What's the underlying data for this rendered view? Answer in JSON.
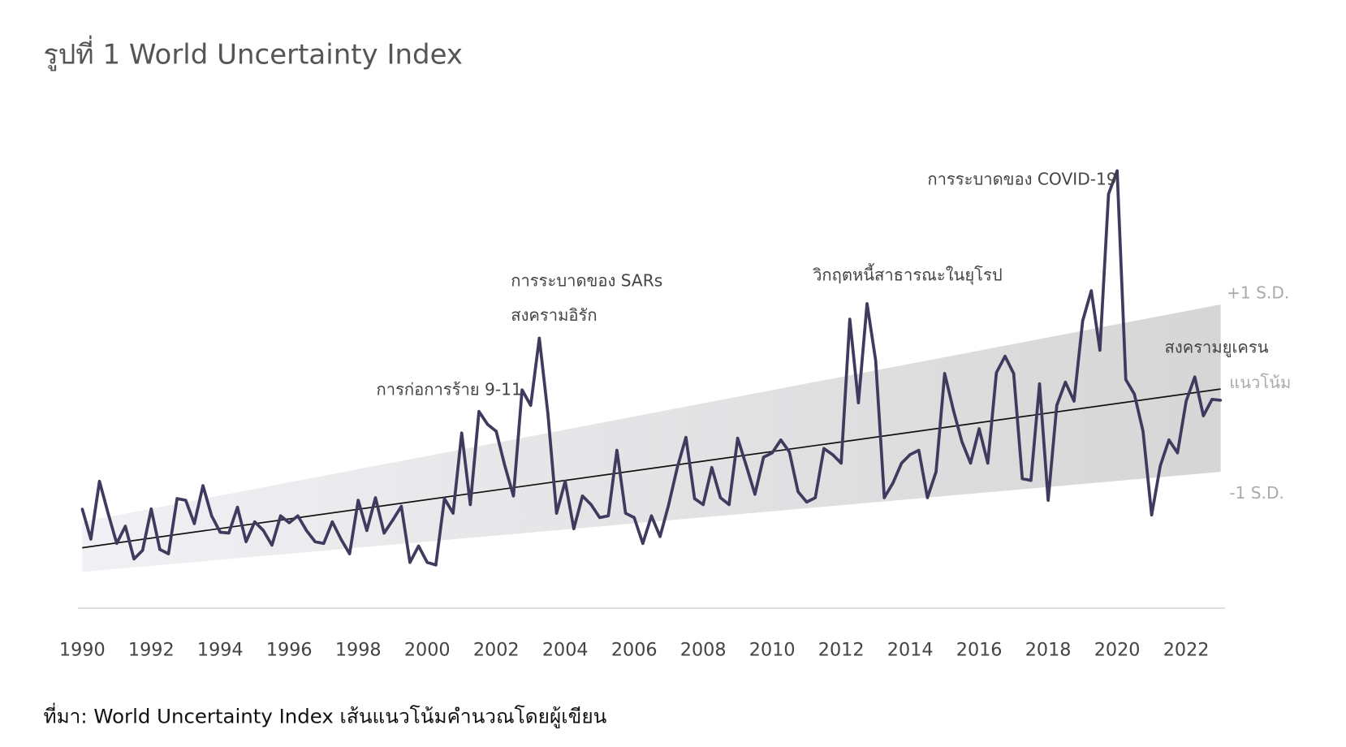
{
  "title": "รูปที่ 1 World Uncertainty Index",
  "source": "ที่มา: World Uncertainty Index เส้นแนวโน้มคำนวณโดยผู้เขียน",
  "colors": {
    "series": "#3f3a5e",
    "trend": "#111111",
    "band_left": "#f1f1f5",
    "band_right": "#d6d6d6",
    "axis": "#dddddd"
  },
  "chart_data": {
    "type": "line",
    "title": "รูปที่ 1 World Uncertainty Index",
    "frequency": "quarterly",
    "start": "1990Q1",
    "xlabel": "",
    "ylabel": "",
    "x_ticks": [
      "1990",
      "1992",
      "1994",
      "1996",
      "1998",
      "2000",
      "2002",
      "2004",
      "2006",
      "2008",
      "2010",
      "2012",
      "2014",
      "2016",
      "2018",
      "2020",
      "2022"
    ],
    "grid": false,
    "ylim": [
      0,
      0.52
    ],
    "values": [
      0.115,
      0.08,
      0.147,
      0.11,
      0.075,
      0.095,
      0.057,
      0.067,
      0.115,
      0.068,
      0.063,
      0.127,
      0.125,
      0.098,
      0.142,
      0.107,
      0.088,
      0.087,
      0.117,
      0.077,
      0.1,
      0.09,
      0.073,
      0.107,
      0.099,
      0.107,
      0.09,
      0.077,
      0.075,
      0.1,
      0.08,
      0.063,
      0.125,
      0.09,
      0.128,
      0.087,
      0.102,
      0.118,
      0.053,
      0.072,
      0.053,
      0.05,
      0.127,
      0.11,
      0.203,
      0.12,
      0.228,
      0.213,
      0.205,
      0.165,
      0.13,
      0.253,
      0.235,
      0.313,
      0.225,
      0.11,
      0.147,
      0.092,
      0.13,
      0.12,
      0.105,
      0.107,
      0.183,
      0.11,
      0.105,
      0.075,
      0.107,
      0.083,
      0.12,
      0.163,
      0.198,
      0.127,
      0.12,
      0.163,
      0.128,
      0.12,
      0.197,
      0.165,
      0.132,
      0.175,
      0.18,
      0.195,
      0.181,
      0.135,
      0.123,
      0.128,
      0.185,
      0.178,
      0.168,
      0.335,
      0.238,
      0.353,
      0.287,
      0.128,
      0.145,
      0.168,
      0.178,
      0.183,
      0.128,
      0.158,
      0.272,
      0.23,
      0.193,
      0.168,
      0.208,
      0.168,
      0.273,
      0.292,
      0.272,
      0.15,
      0.148,
      0.26,
      0.125,
      0.235,
      0.262,
      0.24,
      0.333,
      0.368,
      0.299,
      0.48,
      0.507,
      0.265,
      0.248,
      0.205,
      0.108,
      0.165,
      0.195,
      0.18,
      0.24,
      0.268,
      0.223,
      0.242,
      0.241
    ],
    "trend": {
      "name": "แนวโน้ม",
      "start": 0.07,
      "end": 0.254
    },
    "band": {
      "upper_label": "+1 S.D.",
      "lower_label": "-1 S.D.",
      "upper_start": 0.1,
      "upper_end": 0.352,
      "lower_start": 0.042,
      "lower_end": 0.158
    },
    "annotations": [
      {
        "text": "การก่อการร้าย 9-11"
      },
      {
        "text": "การระบาดของ SARs"
      },
      {
        "text": "สงครามอิรัก"
      },
      {
        "text": "วิกฤตหนี้สาธารณะในยุโรป"
      },
      {
        "text": "การระบาดของ COVID-19"
      },
      {
        "text": "สงครามยูเครน"
      }
    ]
  }
}
